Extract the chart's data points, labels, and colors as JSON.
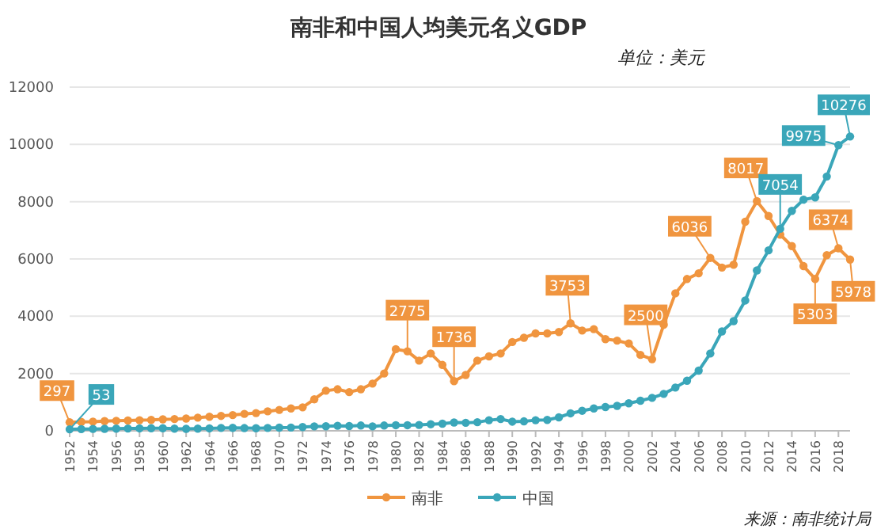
{
  "chart_data": {
    "type": "line",
    "title": "南非和中国人均美元名义GDP",
    "x": [
      1952,
      1953,
      1954,
      1955,
      1956,
      1957,
      1958,
      1959,
      1960,
      1961,
      1962,
      1963,
      1964,
      1965,
      1966,
      1967,
      1968,
      1969,
      1970,
      1971,
      1972,
      1973,
      1974,
      1975,
      1976,
      1977,
      1978,
      1979,
      1980,
      1981,
      1982,
      1983,
      1984,
      1985,
      1986,
      1987,
      1988,
      1989,
      1990,
      1991,
      1992,
      1993,
      1994,
      1995,
      1996,
      1997,
      1998,
      1999,
      2000,
      2001,
      2002,
      2003,
      2004,
      2005,
      2006,
      2007,
      2008,
      2009,
      2010,
      2011,
      2012,
      2013,
      2014,
      2015,
      2016,
      2017,
      2018,
      2019
    ],
    "xlim": [
      1952,
      2019
    ],
    "xticks": [
      1952,
      1954,
      1956,
      1958,
      1960,
      1962,
      1964,
      1966,
      1968,
      1970,
      1972,
      1974,
      1976,
      1978,
      1980,
      1982,
      1984,
      1986,
      1988,
      1990,
      1992,
      1994,
      1996,
      1998,
      2000,
      2002,
      2004,
      2006,
      2008,
      2010,
      2012,
      2014,
      2016,
      2018
    ],
    "ylim": [
      0,
      12000
    ],
    "yticks": [
      0,
      2000,
      4000,
      6000,
      8000,
      10000,
      12000
    ],
    "grid": "y",
    "legend": "bottom",
    "marker": "circle",
    "series": [
      {
        "name": "南非",
        "color": "#f0953f",
        "values": [
          297,
          310,
          320,
          340,
          350,
          360,
          370,
          380,
          400,
          410,
          430,
          460,
          490,
          520,
          550,
          590,
          620,
          680,
          730,
          780,
          820,
          1100,
          1400,
          1450,
          1350,
          1450,
          1650,
          2000,
          2850,
          2775,
          2450,
          2700,
          2300,
          1736,
          1950,
          2450,
          2600,
          2700,
          3100,
          3250,
          3400,
          3400,
          3450,
          3753,
          3500,
          3550,
          3200,
          3150,
          3050,
          2650,
          2500,
          3700,
          4800,
          5300,
          5500,
          6036,
          5700,
          5800,
          7300,
          8017,
          7500,
          6850,
          6450,
          5750,
          5303,
          6132,
          6374,
          5978
        ]
      },
      {
        "name": "中国",
        "color": "#3aa6b9",
        "values": [
          53,
          60,
          65,
          70,
          75,
          80,
          85,
          90,
          90,
          75,
          70,
          75,
          85,
          100,
          105,
          95,
          90,
          100,
          110,
          115,
          130,
          155,
          160,
          175,
          165,
          185,
          155,
          185,
          195,
          195,
          205,
          230,
          250,
          290,
          280,
          300,
          370,
          410,
          320,
          330,
          370,
          380,
          470,
          610,
          700,
          780,
          830,
          870,
          960,
          1050,
          1150,
          1290,
          1510,
          1750,
          2100,
          2700,
          3470,
          3830,
          4550,
          5600,
          6300,
          7054,
          7680,
          8070,
          8150,
          8880,
          9975,
          10276
        ]
      }
    ],
    "annotations": [
      "单位：美元",
      "来源：南非统计局",
      {
        "text": "297",
        "x": 1952,
        "y": 297
      },
      {
        "text": "53",
        "x": 1952,
        "y": 53
      },
      {
        "text": "2775",
        "x": 1981,
        "y": 2775
      },
      {
        "text": "1736",
        "x": 1985,
        "y": 1736
      },
      {
        "text": "3753",
        "x": 1995,
        "y": 3753
      },
      {
        "text": "2500",
        "x": 2002,
        "y": 2500
      },
      {
        "text": "6036",
        "x": 2007,
        "y": 6036
      },
      {
        "text": "8017",
        "x": 2011,
        "y": 8017
      },
      {
        "text": "7054",
        "x": 2013,
        "y": 7054
      },
      {
        "text": "9975",
        "x": 2018,
        "y": 9975
      },
      {
        "text": "10276",
        "x": 2019,
        "y": 10276
      },
      {
        "text": "6374",
        "x": 2018,
        "y": 6374
      },
      {
        "text": "5303",
        "x": 2016,
        "y": 5303
      },
      {
        "text": "5978",
        "x": 2019,
        "y": 5978
      }
    ]
  }
}
